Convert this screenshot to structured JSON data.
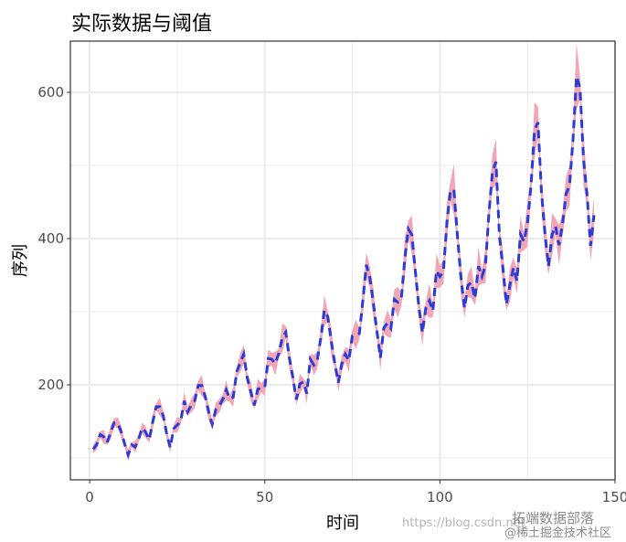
{
  "chart_data": {
    "type": "line",
    "title": "实际数据与阈值",
    "xlabel": "时间",
    "ylabel": "序列",
    "xlim": [
      -5.5,
      150
    ],
    "ylim": [
      70,
      670
    ],
    "xticks": [
      0,
      50,
      100,
      150
    ],
    "yticks": [
      200,
      400,
      600
    ],
    "grid": true,
    "legend": "none",
    "colors": {
      "line": "#2b3bd6",
      "band": "#f0a6b4",
      "grid": "#ebebeb",
      "panel_border": "#333333"
    },
    "threshold_pct": 5,
    "series": [
      {
        "values": [
          112,
          118,
          132,
          129,
          121,
          135,
          148,
          148,
          136,
          119,
          104,
          118,
          115,
          126,
          141,
          135,
          125,
          149,
          170,
          170,
          158,
          133,
          114,
          140,
          145,
          150,
          178,
          163,
          172,
          178,
          199,
          199,
          184,
          162,
          146,
          166,
          171,
          180,
          193,
          181,
          183,
          218,
          230,
          242,
          209,
          191,
          172,
          194,
          196,
          196,
          236,
          235,
          229,
          243,
          264,
          272,
          237,
          211,
          180,
          201,
          204,
          188,
          235,
          227,
          234,
          264,
          302,
          293,
          259,
          229,
          203,
          229,
          242,
          233,
          267,
          269,
          270,
          315,
          364,
          347,
          312,
          274,
          237,
          278,
          284,
          277,
          317,
          313,
          318,
          374,
          413,
          405,
          355,
          306,
          271,
          306,
          315,
          301,
          356,
          348,
          355,
          422,
          465,
          467,
          404,
          347,
          305,
          336,
          340,
          318,
          362,
          348,
          363,
          435,
          491,
          505,
          404,
          359,
          310,
          337,
          360,
          342,
          406,
          396,
          420,
          472,
          548,
          559,
          463,
          407,
          362,
          405,
          417,
          391,
          419,
          461,
          472,
          535,
          622,
          606,
          508,
          461,
          390,
          432
        ]
      }
    ]
  },
  "watermark": {
    "url": "https://blog.csdn.net",
    "brand": "拓端数据部落",
    "community": "@稀土掘金技术社区"
  }
}
